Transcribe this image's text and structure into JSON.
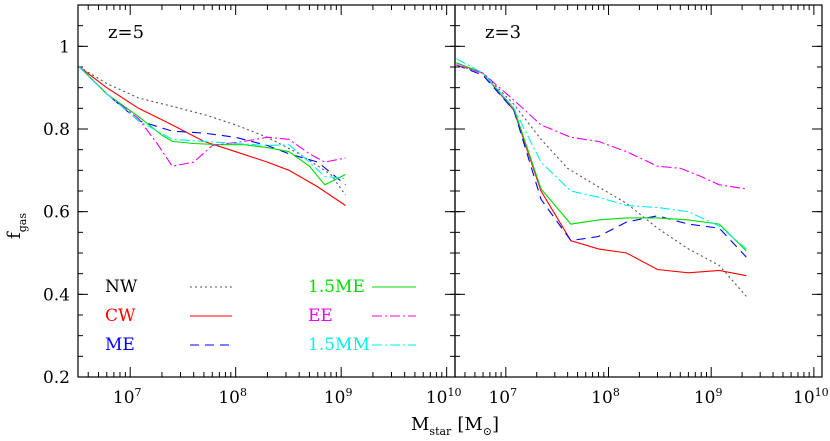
{
  "chart_data": [
    {
      "type": "line",
      "panel_label": "z=5",
      "x_scale": "log",
      "xlim": [
        3200000.0,
        12000000000.0
      ],
      "ylim": [
        0.2,
        1.1
      ],
      "xticks": [
        10000000,
        100000000,
        1000000000,
        10000000000
      ],
      "xtick_labels": [
        [
          "10",
          "7"
        ],
        [
          "10",
          "8"
        ],
        [
          "10",
          "9"
        ],
        [
          "10",
          "10"
        ]
      ],
      "yticks": [
        0.2,
        0.4,
        0.6,
        0.8,
        1.0
      ],
      "ytick_labels": [
        "0.2",
        "0.4",
        "0.6",
        "0.8",
        "1"
      ],
      "ylabel": {
        "main": "f",
        "sub": "gas"
      },
      "series": [
        {
          "name": "NW",
          "color": "#555555",
          "dash": "2,3",
          "x": [
            3300000.0,
            6000000.0,
            12000000.0,
            25000000.0,
            50000000.0,
            100000000.0,
            200000000.0,
            400000000.0,
            800000000.0,
            1100000000.0
          ],
          "y": [
            0.95,
            0.91,
            0.875,
            0.855,
            0.835,
            0.81,
            0.78,
            0.74,
            0.69,
            0.64
          ]
        },
        {
          "name": "CW",
          "color": "#ff0000",
          "dash": "",
          "x": [
            3300000.0,
            6000000.0,
            12000000.0,
            25000000.0,
            50000000.0,
            100000000.0,
            200000000.0,
            320000000.0,
            600000000.0,
            1100000000.0
          ],
          "y": [
            0.95,
            0.9,
            0.85,
            0.81,
            0.77,
            0.745,
            0.72,
            0.7,
            0.66,
            0.615
          ]
        },
        {
          "name": "ME",
          "color": "#0000ff",
          "dash": "9,6",
          "x": [
            3300000.0,
            6000000.0,
            12000000.0,
            25000000.0,
            50000000.0,
            100000000.0,
            200000000.0,
            320000000.0,
            600000000.0,
            1100000000.0
          ],
          "y": [
            0.95,
            0.885,
            0.82,
            0.795,
            0.79,
            0.78,
            0.76,
            0.74,
            0.72,
            0.665
          ]
        },
        {
          "name": "1.5ME",
          "color": "#00dd00",
          "dash": "",
          "x": [
            3300000.0,
            6000000.0,
            12000000.0,
            20000000.0,
            25000000.0,
            40000000.0,
            70000000.0,
            120000000.0,
            200000000.0,
            320000000.0,
            500000000.0,
            700000000.0,
            1100000000.0
          ],
          "y": [
            0.95,
            0.885,
            0.83,
            0.785,
            0.77,
            0.765,
            0.762,
            0.762,
            0.755,
            0.745,
            0.71,
            0.665,
            0.69
          ]
        },
        {
          "name": "EE",
          "color": "#ee00ee",
          "dash": "10,3,2,3",
          "x": [
            3300000.0,
            6000000.0,
            12000000.0,
            18000000.0,
            25000000.0,
            40000000.0,
            60000000.0,
            120000000.0,
            200000000.0,
            320000000.0,
            500000000.0,
            700000000.0,
            1100000000.0
          ],
          "y": [
            0.95,
            0.885,
            0.825,
            0.765,
            0.71,
            0.72,
            0.76,
            0.77,
            0.78,
            0.775,
            0.74,
            0.72,
            0.73
          ]
        },
        {
          "name": "1.5MM",
          "color": "#00eeee",
          "dash": "10,3,2,3",
          "x": [
            3300000.0,
            6000000.0,
            12000000.0,
            25000000.0,
            50000000.0,
            100000000.0,
            200000000.0,
            320000000.0,
            500000000.0,
            700000000.0,
            1100000000.0
          ],
          "y": [
            0.95,
            0.885,
            0.82,
            0.775,
            0.77,
            0.765,
            0.76,
            0.762,
            0.72,
            0.685,
            0.68
          ]
        }
      ]
    },
    {
      "type": "line",
      "panel_label": "z=3",
      "x_scale": "log",
      "xlim": [
        3200000.0,
        12000000000.0
      ],
      "ylim": [
        0.2,
        1.1
      ],
      "xticks": [
        10000000,
        100000000,
        1000000000,
        10000000000
      ],
      "xtick_labels": [
        [
          "10",
          "7"
        ],
        [
          "10",
          "8"
        ],
        [
          "10",
          "9"
        ],
        [
          "10",
          "10"
        ]
      ],
      "yticks": [
        0.2,
        0.4,
        0.6,
        0.8,
        1.0
      ],
      "series": [
        {
          "name": "NW",
          "color": "#555555",
          "dash": "2,3",
          "x": [
            3300000.0,
            6000000.0,
            12000000.0,
            22000000.0,
            40000000.0,
            80000000.0,
            150000000.0,
            300000000.0,
            600000000.0,
            1200000000.0,
            2200000000.0
          ],
          "y": [
            0.955,
            0.935,
            0.86,
            0.775,
            0.705,
            0.66,
            0.62,
            0.56,
            0.51,
            0.47,
            0.395
          ]
        },
        {
          "name": "CW",
          "color": "#ff0000",
          "dash": "",
          "x": [
            3300000.0,
            6000000.0,
            12000000.0,
            22000000.0,
            43000000.0,
            80000000.0,
            150000000.0,
            300000000.0,
            600000000.0,
            1200000000.0,
            2200000000.0
          ],
          "y": [
            0.96,
            0.935,
            0.845,
            0.65,
            0.53,
            0.51,
            0.5,
            0.46,
            0.452,
            0.458,
            0.445
          ]
        },
        {
          "name": "ME",
          "color": "#0000ff",
          "dash": "9,6",
          "x": [
            3300000.0,
            6000000.0,
            12000000.0,
            22000000.0,
            43000000.0,
            80000000.0,
            150000000.0,
            300000000.0,
            600000000.0,
            1200000000.0,
            2200000000.0
          ],
          "y": [
            0.955,
            0.93,
            0.845,
            0.63,
            0.53,
            0.54,
            0.575,
            0.59,
            0.57,
            0.56,
            0.49
          ]
        },
        {
          "name": "1.5ME",
          "color": "#00dd00",
          "dash": "",
          "x": [
            3300000.0,
            6000000.0,
            12000000.0,
            22000000.0,
            43000000.0,
            80000000.0,
            150000000.0,
            300000000.0,
            600000000.0,
            1200000000.0,
            2200000000.0
          ],
          "y": [
            0.96,
            0.935,
            0.85,
            0.655,
            0.57,
            0.58,
            0.585,
            0.585,
            0.58,
            0.57,
            0.505
          ]
        },
        {
          "name": "EE",
          "color": "#ee00ee",
          "dash": "10,3,2,3",
          "x": [
            3300000.0,
            6000000.0,
            12000000.0,
            22000000.0,
            43000000.0,
            80000000.0,
            150000000.0,
            300000000.0,
            500000000.0,
            800000000.0,
            1200000000.0,
            2200000000.0
          ],
          "y": [
            0.955,
            0.935,
            0.87,
            0.81,
            0.78,
            0.77,
            0.745,
            0.71,
            0.705,
            0.685,
            0.665,
            0.655
          ]
        },
        {
          "name": "1.5MM",
          "color": "#00eeee",
          "dash": "10,3,2,3",
          "x": [
            3300000.0,
            6000000.0,
            12000000.0,
            22000000.0,
            43000000.0,
            80000000.0,
            150000000.0,
            300000000.0,
            600000000.0,
            1200000000.0,
            2200000000.0
          ],
          "y": [
            0.97,
            0.935,
            0.85,
            0.72,
            0.65,
            0.635,
            0.615,
            0.61,
            0.6,
            0.565,
            0.51
          ]
        }
      ]
    }
  ],
  "x_axis_label": {
    "main": "M",
    "sub": "star",
    "unit": "[M",
    "unit_sub": "⊙",
    "unit_close": "]"
  },
  "legend": [
    {
      "name": "NW",
      "color": "#000000",
      "line_color": "#555555",
      "dash": "2,3"
    },
    {
      "name": "CW",
      "color": "#ff0000",
      "line_color": "#ff0000",
      "dash": ""
    },
    {
      "name": "ME",
      "color": "#0000ff",
      "line_color": "#0000ff",
      "dash": "9,6"
    },
    {
      "name": "1.5ME",
      "color": "#00dd00",
      "line_color": "#00dd00",
      "dash": ""
    },
    {
      "name": "EE",
      "color": "#ee00ee",
      "line_color": "#ee00ee",
      "dash": "10,3,2,3"
    },
    {
      "name": "1.5MM",
      "color": "#00eeee",
      "line_color": "#00eeee",
      "dash": "10,3,2,3"
    }
  ]
}
